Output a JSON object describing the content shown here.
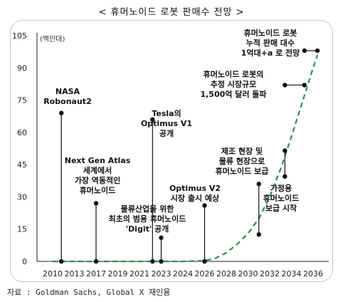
{
  "title": "< 휴머노이드 로봇 판매수 전망 >",
  "source": "자료 : Goldman Sachs, Global X 재인용",
  "chart_data": {
    "type": "line",
    "unit_label": "(백만대)",
    "x_ticks": [
      "2010",
      "2013",
      "2017",
      "2019",
      "2021",
      "2023",
      "2024",
      "2026",
      "2028",
      "2030",
      "2032",
      "2034",
      "2036"
    ],
    "y_ticks": [
      0,
      15,
      30,
      45,
      60,
      75,
      90,
      105
    ],
    "ylim": [
      0,
      105
    ],
    "series": [
      {
        "style": "dashed",
        "color": "#2e8b57",
        "points": [
          {
            "x": 0,
            "y": 0
          },
          {
            "x": 1,
            "y": 0
          },
          {
            "x": 2,
            "y": 0
          },
          {
            "x": 3,
            "y": 0
          },
          {
            "x": 4,
            "y": 0
          },
          {
            "x": 5,
            "y": 0
          },
          {
            "x": 6,
            "y": 0
          },
          {
            "x": 7,
            "y": 0.3
          },
          {
            "x": 7.5,
            "y": 1.5
          },
          {
            "x": 8,
            "y": 4
          },
          {
            "x": 8.5,
            "y": 8
          },
          {
            "x": 9,
            "y": 13
          },
          {
            "x": 9.5,
            "y": 20
          },
          {
            "x": 10,
            "y": 30
          },
          {
            "x": 10.5,
            "y": 43
          },
          {
            "x": 11,
            "y": 58
          },
          {
            "x": 11.5,
            "y": 74
          },
          {
            "x": 12,
            "y": 90
          },
          {
            "x": 12.2,
            "y": 96
          }
        ]
      }
    ],
    "annotations": [
      {
        "lines": [
          "NASA",
          "Robonaut2"
        ],
        "x": 0.4,
        "y0": 0,
        "y1": 69,
        "anchor": "end"
      },
      {
        "lines": [
          "Next Gen Atlas",
          "세계에서",
          "가장 역동적인",
          "휴머노이드"
        ],
        "x": 2.0,
        "y0": 0,
        "y1": 27,
        "anchor": "middle"
      },
      {
        "lines": [
          "Tesla의",
          "Optimus V1",
          "공개"
        ],
        "x": 4.6,
        "y0": 0,
        "y1": 66,
        "anchor": "start"
      },
      {
        "lines": [
          "물류산업을 위한",
          "최초의 범용 휴머노이드",
          "'Digit' 공개"
        ],
        "x": 5.0,
        "y0": 0,
        "y1": 11,
        "anchor": "middle"
      },
      {
        "lines": [
          "Optimus V2",
          "시장 출시 예상"
        ],
        "x": 7.0,
        "y0": 0,
        "y1": 26,
        "anchor": "middle"
      },
      {
        "lines": [
          "제조 현장 및",
          "물류 현장으로",
          "휴머노이드 보급"
        ],
        "x": 9.5,
        "y0": 12.5,
        "y1": 36,
        "anchor": "middle"
      },
      {
        "lines": [
          "가정용",
          "휴머노이드",
          "보급 시작"
        ],
        "x": 10.7,
        "y0": 39.5,
        "y1": 51.5,
        "anchor": "start"
      },
      {
        "lines": [
          "휴머노이드 로봇의",
          "추정 시장규모",
          "1,500억 달러 돌파"
        ],
        "x": 10.7,
        "y0": 82,
        "y1": 82,
        "anchor": "middle",
        "x2": 11.6
      },
      {
        "lines": [
          "휴머노이드 로봇",
          "누적 판매 대수",
          "1억대+a 로 전망"
        ],
        "x": 11.6,
        "y0": 98,
        "y1": 98,
        "anchor": "middle",
        "x2": 12.2
      }
    ]
  }
}
